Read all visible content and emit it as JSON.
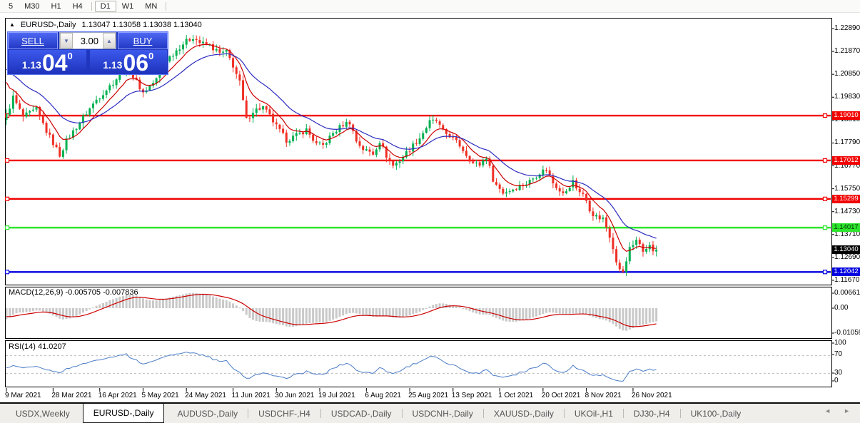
{
  "toolbar": {
    "timeframes": [
      {
        "label": "5",
        "active": false
      },
      {
        "label": "M30",
        "active": false
      },
      {
        "label": "H1",
        "active": false
      },
      {
        "label": "H4",
        "active": false
      },
      {
        "label": "D1",
        "active": true
      },
      {
        "label": "W1",
        "active": false
      },
      {
        "label": "MN",
        "active": false
      }
    ]
  },
  "chart": {
    "collapse_arrow": "▲",
    "title_symbol": "EURUSD-,Daily",
    "title_ohlc": "1.13047 1.13058 1.13038 1.13040",
    "trade_panel": {
      "sell_label": "SELL",
      "buy_label": "BUY",
      "volume": "3.00",
      "spin_down": "▼",
      "spin_up": "▲",
      "sell_price_small": "1.13",
      "sell_price_big": "04",
      "sell_price_sup": "0",
      "buy_price_small": "1.13",
      "buy_price_big": "06",
      "buy_price_sup": "0"
    },
    "y_axis": {
      "ticks": [
        "1.22890",
        "1.21870",
        "1.20850",
        "1.19830",
        "1.18810",
        "1.17790",
        "1.16770",
        "1.15750",
        "1.14730",
        "1.13710",
        "1.12690",
        "1.11670"
      ]
    },
    "current_price": {
      "label": "1.13040",
      "price": 1.1304,
      "bg": "#000000",
      "fg": "#ffffff"
    }
  },
  "macd_panel": {
    "label": "MACD(12,26,9) -0.005705 -0.007836",
    "axis": [
      "0.006611",
      "0.00",
      "-0.010595"
    ]
  },
  "rsi_panel": {
    "label": "RSI(14) 41.0207",
    "axis": [
      "100",
      "70",
      "30",
      "0"
    ]
  },
  "x_axis": {
    "dates": [
      {
        "label": "9 Mar 2021",
        "bar": 0
      },
      {
        "label": "28 Mar 2021",
        "bar": 14
      },
      {
        "label": "16 Apr 2021",
        "bar": 28
      },
      {
        "label": "5 May 2021",
        "bar": 41
      },
      {
        "label": "24 May 2021",
        "bar": 54
      },
      {
        "label": "11 Jun 2021",
        "bar": 68
      },
      {
        "label": "30 Jun 2021",
        "bar": 81
      },
      {
        "label": "19 Jul 2021",
        "bar": 94
      },
      {
        "label": "6 Aug 2021",
        "bar": 108
      },
      {
        "label": "25 Aug 2021",
        "bar": 121
      },
      {
        "label": "13 Sep 2021",
        "bar": 134
      },
      {
        "label": "1 Oct 2021",
        "bar": 148
      },
      {
        "label": "20 Oct 2021",
        "bar": 161
      },
      {
        "label": "8 Nov 2021",
        "bar": 174
      },
      {
        "label": "26 Nov 2021",
        "bar": 188
      }
    ]
  },
  "tabs": {
    "items": [
      {
        "label": "USDX,Weekly",
        "active": false
      },
      {
        "label": "EURUSD-,Daily",
        "active": true
      },
      {
        "label": "AUDUSD-,Daily",
        "active": false
      },
      {
        "label": "USDCHF-,H4",
        "active": false
      },
      {
        "label": "USDCAD-,Daily",
        "active": false
      },
      {
        "label": "USDCNH-,Daily",
        "active": false
      },
      {
        "label": "XAUUSD-,Daily",
        "active": false
      },
      {
        "label": "UKOil-,H1",
        "active": false
      },
      {
        "label": "DJ30-,H4",
        "active": false
      },
      {
        "label": "UK100-,Daily",
        "active": false
      }
    ],
    "scroll_left": "◄",
    "scroll_right": "►"
  },
  "chart_data": {
    "type": "candlestick",
    "symbol": "EURUSD-",
    "timeframe": "Daily",
    "title": "EURUSD-,Daily",
    "ohlc_display": {
      "open": 1.13047,
      "high": 1.13058,
      "low": 1.13038,
      "close": 1.1304
    },
    "quote": {
      "bid": 1.1304,
      "ask": 1.1306,
      "volume": 3.0
    },
    "bars_total": 196,
    "x_first_label": "9 Mar 2021",
    "x_last_label": "26 Nov 2021",
    "y_top_tick": 1.2289,
    "y_tick_step": 0.0102,
    "ylim": [
      1.1135,
      1.2337
    ],
    "grid": false,
    "close_path_anchors": [
      [
        0,
        1.19
      ],
      [
        2,
        1.1983
      ],
      [
        5,
        1.1895
      ],
      [
        9,
        1.1928
      ],
      [
        12,
        1.1832
      ],
      [
        16,
        1.1726
      ],
      [
        18,
        1.1788
      ],
      [
        23,
        1.1893
      ],
      [
        27,
        1.1972
      ],
      [
        31,
        1.2033
      ],
      [
        34,
        1.2082
      ],
      [
        36,
        1.2118
      ],
      [
        39,
        1.2052
      ],
      [
        41,
        1.2003
      ],
      [
        45,
        1.2062
      ],
      [
        48,
        1.2148
      ],
      [
        53,
        1.2222
      ],
      [
        56,
        1.2252
      ],
      [
        58,
        1.2226
      ],
      [
        61,
        1.2212
      ],
      [
        64,
        1.2178
      ],
      [
        66,
        1.2184
      ],
      [
        68,
        1.2124
      ],
      [
        70,
        1.2048
      ],
      [
        72,
        1.1882
      ],
      [
        74,
        1.1922
      ],
      [
        77,
        1.1938
      ],
      [
        79,
        1.1898
      ],
      [
        81,
        1.1852
      ],
      [
        84,
        1.1792
      ],
      [
        87,
        1.1812
      ],
      [
        90,
        1.1838
      ],
      [
        93,
        1.1772
      ],
      [
        95,
        1.1768
      ],
      [
        98,
        1.1822
      ],
      [
        101,
        1.1862
      ],
      [
        103,
        1.1872
      ],
      [
        105,
        1.1788
      ],
      [
        107,
        1.1752
      ],
      [
        110,
        1.1732
      ],
      [
        112,
        1.1788
      ],
      [
        114,
        1.1722
      ],
      [
        116,
        1.1678
      ],
      [
        118,
        1.1702
      ],
      [
        121,
        1.1752
      ],
      [
        124,
        1.1802
      ],
      [
        127,
        1.1872
      ],
      [
        129,
        1.1878
      ],
      [
        131,
        1.1828
      ],
      [
        133,
        1.1812
      ],
      [
        136,
        1.1768
      ],
      [
        138,
        1.1728
      ],
      [
        140,
        1.1688
      ],
      [
        142,
        1.1682
      ],
      [
        144,
        1.1718
      ],
      [
        146,
        1.1618
      ],
      [
        147,
        1.1592
      ],
      [
        149,
        1.1558
      ],
      [
        151,
        1.1568
      ],
      [
        154,
        1.1588
      ],
      [
        156,
        1.1598
      ],
      [
        158,
        1.1622
      ],
      [
        160,
        1.1648
      ],
      [
        162,
        1.1662
      ],
      [
        164,
        1.1602
      ],
      [
        166,
        1.1572
      ],
      [
        168,
        1.1558
      ],
      [
        170,
        1.1608
      ],
      [
        171,
        1.1578
      ],
      [
        173,
        1.1552
      ],
      [
        175,
        1.1478
      ],
      [
        177,
        1.1448
      ],
      [
        179,
        1.1438
      ],
      [
        181,
        1.1368
      ],
      [
        182,
        1.1318
      ],
      [
        183,
        1.1242
      ],
      [
        185,
        1.1198
      ],
      [
        186,
        1.1252
      ],
      [
        187,
        1.1318
      ],
      [
        189,
        1.1338
      ],
      [
        190,
        1.1328
      ],
      [
        191,
        1.1292
      ],
      [
        193,
        1.1318
      ],
      [
        194,
        1.1286
      ],
      [
        195,
        1.1304
      ]
    ],
    "last_close": 1.1304,
    "hlines": [
      {
        "price": 1.1901,
        "label": "1.19010",
        "color": "#F20000",
        "text_color": "#ffffff"
      },
      {
        "price": 1.17012,
        "label": "1.17012",
        "color": "#F20000",
        "text_color": "#ffffff"
      },
      {
        "price": 1.15299,
        "label": "1.15299",
        "color": "#F20000",
        "text_color": "#ffffff"
      },
      {
        "price": 1.14017,
        "label": "1.14017",
        "color": "#2DE52D",
        "text_color": "#003300"
      },
      {
        "price": 1.12042,
        "label": "1.12042",
        "color": "#0000E0",
        "text_color": "#ffffff"
      }
    ],
    "moving_averages": [
      {
        "name": "MA fast",
        "period": 8,
        "color": "#CC0000",
        "seed": 1.209
      },
      {
        "name": "MA slow",
        "period": 21,
        "color": "#2B2BC0",
        "seed": 1.2128
      }
    ],
    "macd": {
      "params": [
        12,
        26,
        9
      ],
      "value": -0.005705,
      "signal_value": -0.007836,
      "axis_max": 0.006611,
      "axis_min": -0.010595,
      "hist_color": "#C9C9C9",
      "signal_color": "#CC0000",
      "seed_fast": 1.1872,
      "seed_slow": 1.1927
    },
    "rsi": {
      "period": 14,
      "value": 41.0207,
      "levels": [
        70,
        30
      ],
      "range": [
        0,
        100
      ],
      "color": "#4A7CC7",
      "level_color": "#BBBBBB"
    },
    "colors": {
      "candle_up": "#00B050",
      "candle_down": "#EF2F24",
      "frame": "#000000",
      "background": "#ffffff"
    }
  }
}
